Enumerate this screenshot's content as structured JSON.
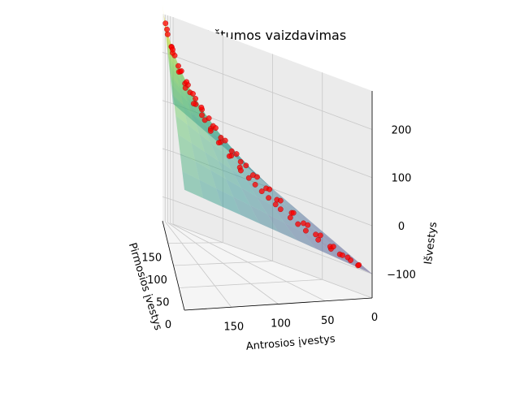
{
  "chart_data": {
    "type": "scatter",
    "projection": "3d",
    "title": "Plokštumos vaizdavimas",
    "xlabel": "Pirmosios įvestys",
    "ylabel": "Antrosios įvestys",
    "zlabel": "Išvestys",
    "x_ticks": [
      "0",
      "50",
      "100",
      "150"
    ],
    "y_ticks": [
      "0",
      "50",
      "100",
      "150"
    ],
    "z_ticks": [
      "−100",
      "0",
      "100",
      "200"
    ],
    "xlim": [
      0,
      200
    ],
    "ylim": [
      0,
      200
    ],
    "zlim": [
      -150,
      280
    ],
    "grid": true,
    "surface": {
      "description_colormap": "viridis",
      "plane": "z = x + y - 100",
      "alpha": 0.5
    },
    "marker_color": "#ff0000",
    "series": [
      {
        "x": [
          190,
          185,
          178,
          170,
          165,
          160,
          150,
          145,
          140,
          135,
          130,
          125,
          120,
          115,
          110,
          105,
          100,
          95,
          90,
          85,
          80,
          75,
          70,
          65,
          60,
          55,
          50,
          45,
          40,
          35,
          30,
          25,
          20,
          15,
          10,
          8,
          5,
          180,
          172,
          158,
          148,
          138,
          128,
          118,
          108,
          98,
          88,
          78,
          68,
          58,
          48,
          38,
          28,
          18,
          12,
          175,
          162,
          152,
          142,
          132,
          122,
          112,
          102,
          92,
          82,
          72,
          62,
          52,
          42,
          32,
          22,
          14,
          6
        ],
        "y": [
          180,
          176,
          182,
          170,
          160,
          175,
          155,
          165,
          150,
          140,
          158,
          135,
          145,
          130,
          128,
          120,
          125,
          110,
          118,
          100,
          108,
          95,
          98,
          90,
          85,
          80,
          75,
          70,
          68,
          60,
          55,
          50,
          40,
          30,
          25,
          15,
          10,
          150,
          160,
          140,
          130,
          120,
          115,
          100,
          95,
          85,
          80,
          70,
          60,
          55,
          45,
          40,
          35,
          28,
          20,
          120,
          110,
          105,
          95,
          90,
          88,
          80,
          70,
          65,
          58,
          50,
          45,
          38,
          30,
          25,
          20,
          12,
          8
        ],
        "z": [
          270,
          262,
          258,
          240,
          226,
          236,
          206,
          210,
          190,
          176,
          190,
          160,
          166,
          146,
          140,
          126,
          126,
          106,
          110,
          86,
          90,
          70,
          68,
          56,
          46,
          36,
          26,
          16,
          10,
          -4,
          -14,
          -24,
          -40,
          -56,
          -64,
          -76,
          -85,
          230,
          232,
          200,
          180,
          160,
          146,
          120,
          104,
          84,
          70,
          50,
          30,
          14,
          -6,
          -20,
          -36,
          -54,
          -68,
          196,
          174,
          158,
          138,
          124,
          112,
          94,
          74,
          58,
          42,
          24,
          8,
          -10,
          -28,
          -42,
          -58,
          -75,
          -85
        ]
      }
    ]
  }
}
